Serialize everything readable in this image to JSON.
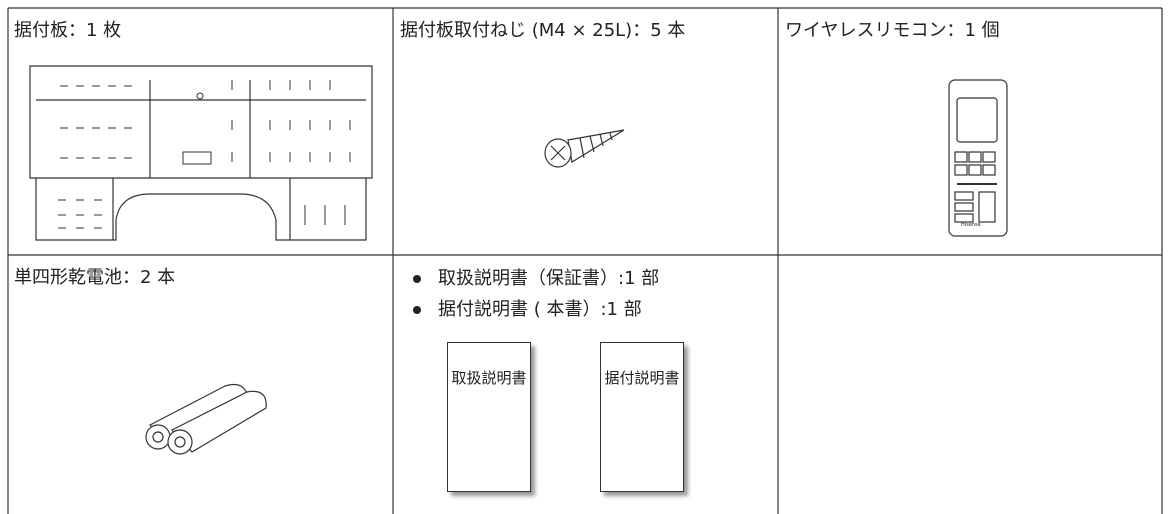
{
  "table": {
    "rows": [
      [
        {
          "label": "据付板：1 枚"
        },
        {
          "label": "据付板取付ねじ (M4 × 25L)：5 本"
        },
        {
          "label": "ワイヤレスリモコン：1 個",
          "brand": "Hisense"
        }
      ],
      [
        {
          "label": "単四形乾電池：2 本"
        },
        {
          "items": [
            "取扱説明書（保証書）:1 部",
            "据付説明書 ( 本書）:1 部"
          ],
          "booklets": [
            "取扱説明書",
            "据付説明書"
          ]
        }
      ]
    ]
  }
}
